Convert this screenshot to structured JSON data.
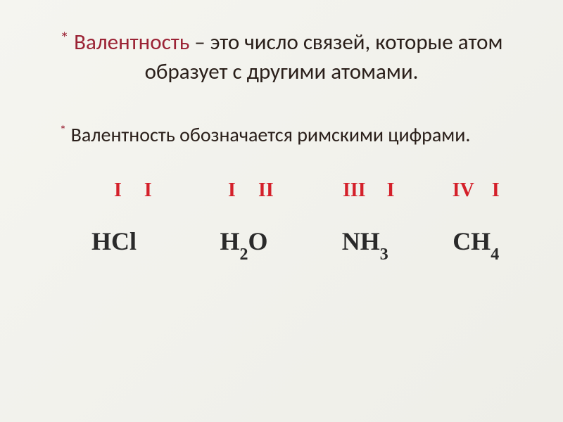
{
  "title": {
    "highlighted_word": "Валентность",
    "rest_of_text": " – это число связей, которые атом образует с другими атомами.",
    "highlight_color": "#9b2335",
    "text_color": "#2a1f1a",
    "fontsize": 31
  },
  "subtitle": {
    "text": "Валентность обозначается римскими цифрами.",
    "text_color": "#2a1f1a",
    "fontsize": 28
  },
  "asterisk": {
    "color": "#9b2335",
    "char": "*"
  },
  "roman_numerals": {
    "color": "#d4202a",
    "fontsize": 28,
    "groups": [
      [
        "I",
        "I"
      ],
      [
        "I",
        "II"
      ],
      [
        "III",
        "I"
      ],
      [
        "IV",
        "I"
      ]
    ]
  },
  "formulas": {
    "color": "#2a2a2a",
    "fontsize": 36,
    "items": [
      {
        "main": "HCl",
        "sub": ""
      },
      {
        "main": "H",
        "sub": "2",
        "tail": "O"
      },
      {
        "main": "NH",
        "sub": "3",
        "tail": ""
      },
      {
        "main": "CH",
        "sub": "4",
        "tail": ""
      }
    ]
  },
  "background": {
    "gradient_start": "#f5f5f0",
    "gradient_end": "#eeeee8"
  }
}
